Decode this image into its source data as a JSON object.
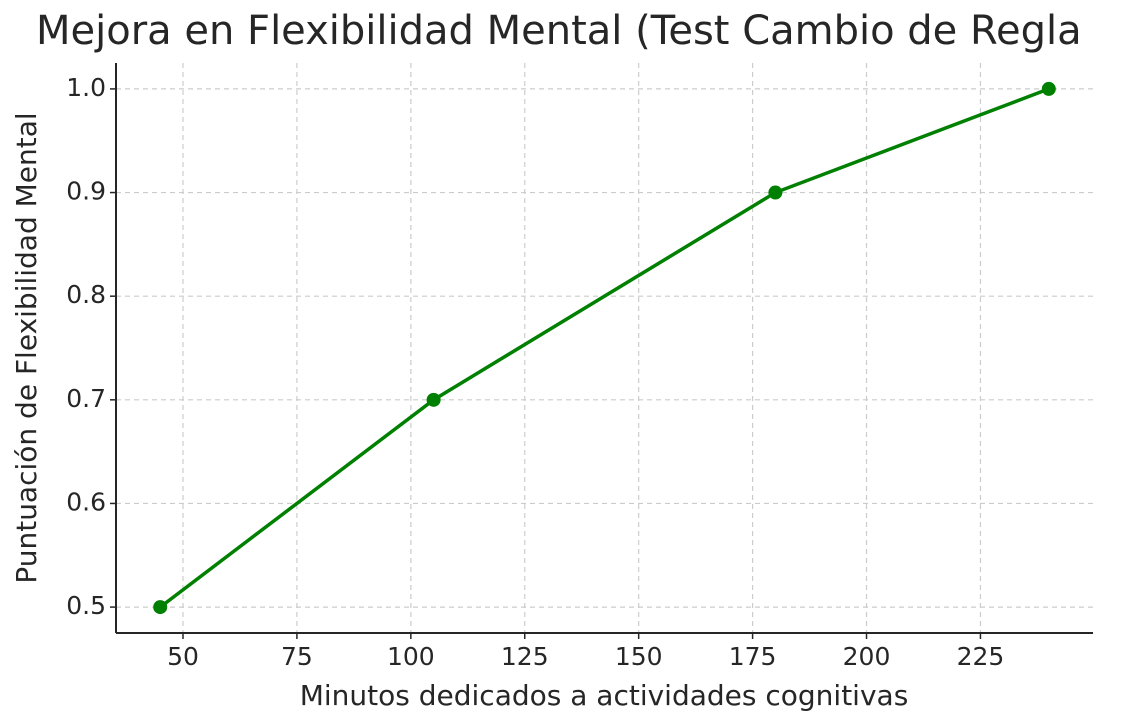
{
  "chart_data": {
    "type": "line",
    "title": "Mejora en Flexibilidad Mental (Test Cambio de Regla",
    "xlabel": "Minutos dedicados a actividades cognitivas",
    "ylabel": "Puntuación de Flexibilidad Mental",
    "x": [
      45,
      105,
      180,
      240
    ],
    "values": [
      0.5,
      0.7,
      0.9,
      1.0
    ],
    "color": "#008000",
    "xlim": [
      35.3,
      249.7
    ],
    "ylim": [
      0.475,
      1.025
    ],
    "xticks": [
      50,
      75,
      100,
      125,
      150,
      175,
      200,
      225
    ],
    "yticks": [
      0.5,
      0.6,
      0.7,
      0.8,
      0.9,
      {
        "value": 1,
        "label": "1.0"
      }
    ],
    "grid": true
  }
}
